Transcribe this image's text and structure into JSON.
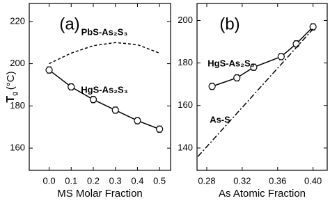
{
  "chart_data": [
    {
      "type": "line",
      "title": "(a)",
      "x_label": "MS Molar Fraction",
      "y_label": "T",
      "y_label_subscript": "g",
      "y_label_unit": "(°C)",
      "xlim": [
        -0.09,
        0.55
      ],
      "xticks": [
        {
          "value": 0,
          "label": "0.0"
        },
        0.1,
        0.2,
        0.3,
        0.4,
        0.5
      ],
      "ylim": [
        149.5,
        228.5
      ],
      "yticks": [
        160,
        180,
        200,
        220
      ],
      "series": [
        {
          "name": "PbS-As₂S₃",
          "color": "#000000",
          "style": "dashed",
          "markers": false,
          "x": [
            0,
            0.1,
            0.2,
            0.3,
            0.4,
            0.5
          ],
          "values": [
            200,
            205,
            208.5,
            210,
            209,
            205
          ]
        },
        {
          "name": "HgS-As₂S₃",
          "color": "#000000",
          "style": "solid",
          "markers": true,
          "x": [
            0,
            0.1,
            0.2,
            0.3,
            0.4,
            0.5
          ],
          "values": [
            197,
            189,
            183,
            178,
            173,
            169
          ],
          "errors": [
            1.5,
            1.5,
            1.5,
            1.5,
            1.5,
            1.5
          ]
        }
      ]
    },
    {
      "type": "line",
      "title": "(b)",
      "x_label": "As Atomic Fraction",
      "xlim": [
        0.269,
        0.416
      ],
      "xticks": [
        0.28,
        0.32,
        0.36,
        {
          "value": 0.4,
          "label": "0.40"
        }
      ],
      "ylim": [
        129.5,
        208
      ],
      "yticks": [
        140,
        160,
        180,
        200
      ],
      "series": [
        {
          "name": "HgS-As₂S₃",
          "color": "#000000",
          "style": "solid",
          "markers": true,
          "x": [
            0.286,
            0.314,
            0.333,
            0.364,
            0.381,
            0.4
          ],
          "values": [
            169,
            173,
            178,
            183,
            189,
            197
          ],
          "errors": [
            1.5,
            1.5,
            1.5,
            1.5,
            1.5,
            1.5
          ]
        },
        {
          "name": "As-S",
          "color": "#000000",
          "style": "dashdot",
          "markers": false,
          "x": [
            0.27,
            0.4
          ],
          "values": [
            136,
            196
          ]
        }
      ]
    }
  ]
}
